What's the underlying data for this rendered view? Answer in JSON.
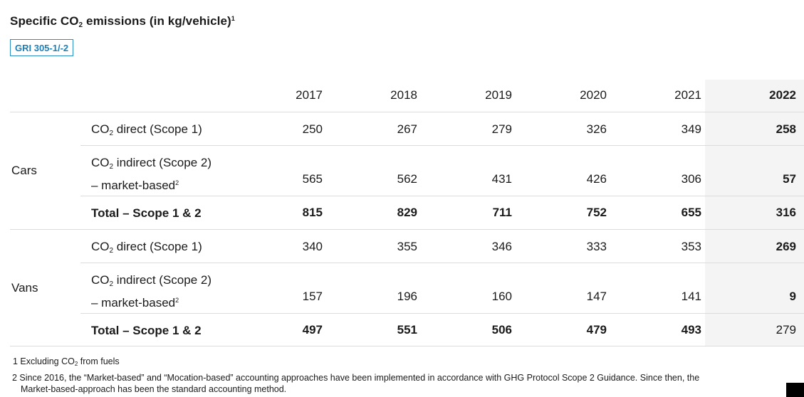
{
  "title": {
    "pre": "Specific CO",
    "sub": "2",
    "post": " emissions (in kg/vehicle)",
    "sup": "1"
  },
  "badge": "GRI 305-1/-2",
  "years": [
    "2017",
    "2018",
    "2019",
    "2020",
    "2021",
    "2022"
  ],
  "highlight_year": "2022",
  "groups": [
    {
      "name": "Cars",
      "rows": [
        {
          "label_pre": "CO",
          "label_sub": "2",
          "label_post": " direct (Scope 1)",
          "values": [
            "250",
            "267",
            "279",
            "326",
            "349",
            "258"
          ]
        },
        {
          "label_pre": "CO",
          "label_sub": "2",
          "label_post": " indirect (Scope 2)",
          "label_line2": "– market-based",
          "label_sup": "2",
          "values": [
            "565",
            "562",
            "431",
            "426",
            "306",
            "57"
          ]
        },
        {
          "label": "Total – Scope 1 & 2",
          "values": [
            "815",
            "829",
            "711",
            "752",
            "655",
            "316"
          ]
        }
      ]
    },
    {
      "name": "Vans",
      "rows": [
        {
          "label_pre": "CO",
          "label_sub": "2",
          "label_post": " direct (Scope 1)",
          "values": [
            "340",
            "355",
            "346",
            "333",
            "353",
            "269"
          ]
        },
        {
          "label_pre": "CO",
          "label_sub": "2",
          "label_post": " indirect (Scope 2)",
          "label_line2": "– market-based",
          "label_sup": "2",
          "values": [
            "157",
            "196",
            "160",
            "147",
            "141",
            "9"
          ]
        },
        {
          "label": "Total – Scope 1 & 2",
          "values": [
            "497",
            "551",
            "506",
            "479",
            "493",
            "279"
          ]
        }
      ]
    }
  ],
  "footnotes": {
    "fn1_pre": "1 Excluding CO",
    "fn1_sub": "2",
    "fn1_post": " from fuels",
    "fn2_line1": "2 Since 2016, the “Market-based” and “Mocation-based” accounting approaches have been implemented in accordance with GHG Protocol Scope 2 Guidance. Since then, the",
    "fn2_line2": "Market-based-approach has been the standard accounting method."
  },
  "colors": {
    "badge_border": "#2a8fc4",
    "highlight_bg": "#f4f4f4",
    "rule": "#dcdcdc"
  }
}
